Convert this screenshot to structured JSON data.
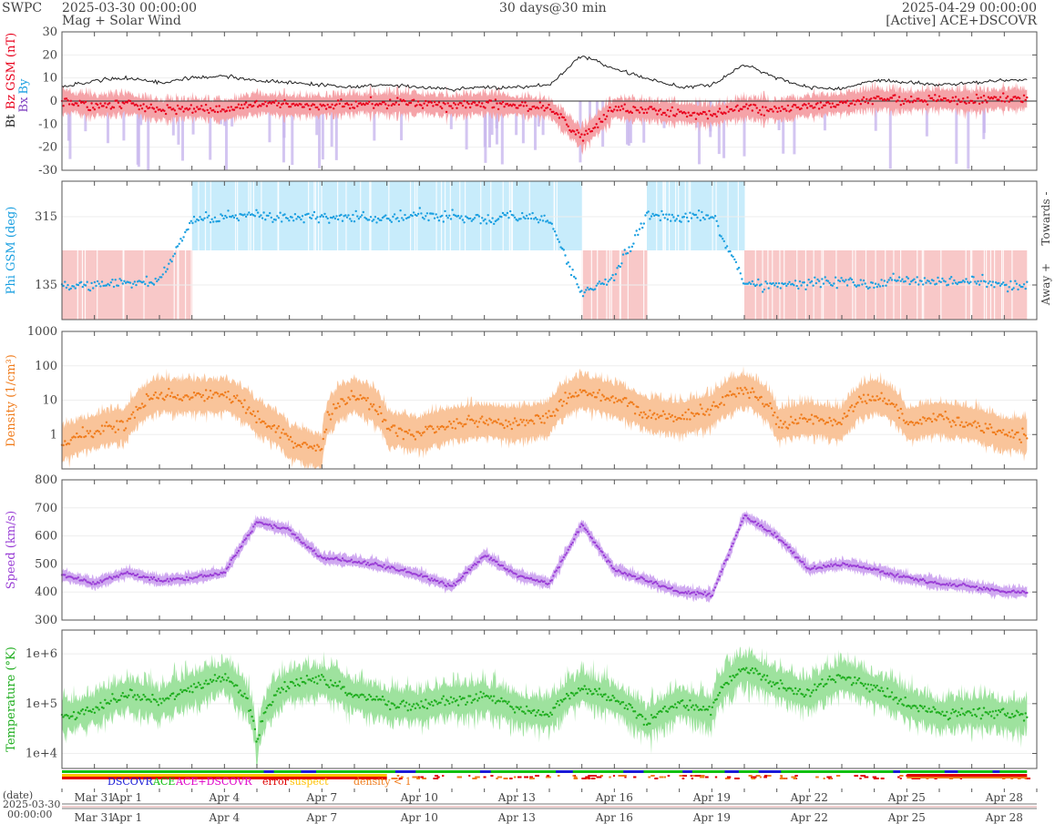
{
  "header": {
    "org": "SWPC",
    "start": "2025-03-30 00:00:00",
    "subtitle": "Mag + Solar Wind",
    "resolution": "30 days@30 min",
    "end": "2025-04-29 00:00:00",
    "source": "[Active] ACE+DSCOVR"
  },
  "colors": {
    "bt": "#222222",
    "bz": "#e8001c",
    "bz_band": "#f5a3a8",
    "by_band": "#c9b7ee",
    "phi": "#1a9fe0",
    "phi_toward": "#c8ecfb",
    "phi_away": "#f8c8c8",
    "density": "#f07c1c",
    "density_band": "#f9c49a",
    "speed": "#9a3fd6",
    "speed_band": "#cfa8f0",
    "temp": "#1fae1f",
    "temp_band": "#9ee29e",
    "dscovr": "#1a1ad6",
    "ace": "#10c010",
    "ace_dscovr": "#e000c8",
    "error": "#e00000",
    "suspect": "#ffc000",
    "density_low": "#f07c1c"
  },
  "chart_data": [
    {
      "type": "line",
      "panel": "mag",
      "ylabel": "Bz GSM (nT)",
      "ylabel_bt": "Bt",
      "ylabel_bx": "Bx",
      "ylabel_by": "By",
      "ylim": [
        -30,
        30
      ],
      "yticks": [
        -30,
        -20,
        -10,
        0,
        10,
        20,
        30
      ],
      "x_days": [
        0,
        1,
        2,
        3,
        4,
        5,
        6,
        7,
        8,
        9,
        10,
        11,
        12,
        13,
        14,
        15,
        16,
        17,
        18,
        19,
        20,
        21,
        22,
        23,
        24,
        25,
        26,
        27,
        28,
        29
      ],
      "series": [
        {
          "name": "Bt",
          "values": [
            6,
            9,
            10,
            8,
            10,
            11,
            9,
            8,
            7,
            6,
            7,
            6,
            5,
            6,
            6,
            7,
            20,
            14,
            10,
            6,
            7,
            16,
            10,
            6,
            5,
            9,
            8,
            7,
            8,
            9
          ]
        },
        {
          "name": "Bz",
          "values": [
            0,
            -2,
            -1,
            -4,
            -3,
            -4,
            -1,
            -2,
            -2,
            -1,
            -1,
            -1,
            -2,
            -1,
            -2,
            -3,
            -16,
            -3,
            -4,
            -5,
            -6,
            -3,
            -4,
            -2,
            -1,
            1,
            0,
            1,
            0,
            1
          ]
        }
      ]
    },
    {
      "type": "scatter",
      "panel": "phi",
      "ylabel": "Phi GSM (deg)",
      "yticks": [
        135,
        315
      ],
      "right_labels": [
        "Towards -",
        "Away +"
      ],
      "x_days": [
        0,
        1,
        2,
        3,
        4,
        5,
        6,
        7,
        8,
        9,
        10,
        11,
        12,
        13,
        14,
        15,
        16,
        17,
        18,
        19,
        20,
        21,
        22,
        23,
        24,
        25,
        26,
        27,
        28,
        29
      ],
      "values": [
        130,
        135,
        140,
        145,
        305,
        315,
        320,
        310,
        318,
        315,
        312,
        320,
        315,
        310,
        318,
        305,
        110,
        160,
        320,
        315,
        320,
        140,
        135,
        140,
        145,
        140,
        150,
        140,
        145,
        135
      ]
    },
    {
      "type": "line",
      "panel": "density",
      "ylabel": "Density (1/cm³)",
      "yscale": "log",
      "ylim": [
        0.1,
        1000
      ],
      "yticks": [
        1,
        10,
        100,
        1000
      ],
      "x_days": [
        0,
        1,
        2,
        3,
        4,
        5,
        6,
        7,
        8,
        9,
        10,
        11,
        12,
        13,
        14,
        15,
        16,
        17,
        18,
        19,
        20,
        21,
        22,
        23,
        24,
        25,
        26,
        27,
        28,
        29
      ],
      "values": [
        0.5,
        1.2,
        2,
        14,
        13,
        14,
        3,
        0.6,
        0.3,
        14,
        1.5,
        1,
        2,
        2.5,
        2,
        3,
        18,
        10,
        4,
        3,
        5,
        20,
        2,
        3,
        2,
        14,
        2,
        3,
        2,
        1
      ]
    },
    {
      "type": "line",
      "panel": "speed",
      "ylabel": "Speed (km/s)",
      "ylim": [
        300,
        800
      ],
      "yticks": [
        300,
        400,
        500,
        600,
        700,
        800
      ],
      "x_days": [
        0,
        1,
        2,
        3,
        4,
        5,
        6,
        7,
        8,
        9,
        10,
        11,
        12,
        13,
        14,
        15,
        16,
        17,
        18,
        19,
        20,
        21,
        22,
        23,
        24,
        25,
        26,
        27,
        28,
        29
      ],
      "values": [
        460,
        430,
        470,
        440,
        450,
        470,
        650,
        620,
        520,
        510,
        490,
        460,
        420,
        530,
        460,
        430,
        640,
        480,
        440,
        400,
        390,
        670,
        600,
        480,
        500,
        480,
        450,
        430,
        420,
        400
      ]
    },
    {
      "type": "line",
      "panel": "temperature",
      "ylabel": "Temperature (°K)",
      "yscale": "log",
      "ylim": [
        5000,
        3000000
      ],
      "yticks": [
        10000,
        100000,
        1000000
      ],
      "ytick_labels": [
        "1e+4",
        "1e+5",
        "1e+6"
      ],
      "x_days": [
        0,
        1,
        2,
        3,
        4,
        5,
        6,
        7,
        8,
        9,
        10,
        11,
        12,
        13,
        14,
        15,
        16,
        17,
        18,
        19,
        20,
        21,
        22,
        23,
        24,
        25,
        26,
        27,
        28,
        29
      ],
      "values": [
        50000,
        80000,
        150000,
        100000,
        200000,
        350000,
        8000,
        250000,
        300000,
        150000,
        100000,
        90000,
        120000,
        130000,
        80000,
        60000,
        200000,
        120000,
        40000,
        100000,
        70000,
        500000,
        250000,
        150000,
        350000,
        200000,
        100000,
        60000,
        70000,
        60000
      ]
    }
  ],
  "legend": {
    "items": [
      "DSCOVR",
      "ACE",
      "ACE+DSCOVR",
      "error",
      "suspect",
      "density < 1"
    ]
  },
  "xaxis": {
    "ticks": [
      {
        "day": 1,
        "label": "Mar 31"
      },
      {
        "day": 2,
        "label": "Apr 1"
      },
      {
        "day": 5,
        "label": "Apr 4"
      },
      {
        "day": 8,
        "label": "Apr 7"
      },
      {
        "day": 11,
        "label": "Apr 10"
      },
      {
        "day": 14,
        "label": "Apr 13"
      },
      {
        "day": 17,
        "label": "Apr 16"
      },
      {
        "day": 20,
        "label": "Apr 19"
      },
      {
        "day": 23,
        "label": "Apr 22"
      },
      {
        "day": 26,
        "label": "Apr 25"
      },
      {
        "day": 29,
        "label": "Apr 28"
      }
    ],
    "date_label": "(date)",
    "range_start_date": "2025-03-30",
    "range_start_time": "00:00:00"
  }
}
